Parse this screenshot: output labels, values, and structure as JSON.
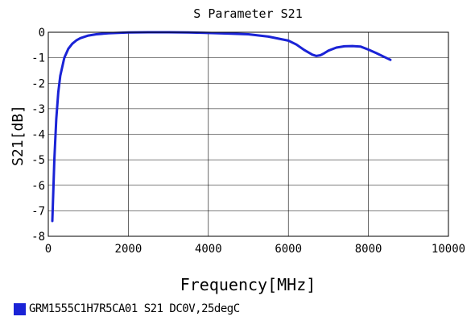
{
  "chart_data": {
    "type": "line",
    "title": "S Parameter S21",
    "xlabel": "Frequency[MHz]",
    "ylabel": "S21[dB]",
    "xlim": [
      0,
      10000
    ],
    "ylim": [
      -8,
      0
    ],
    "xticks": [
      "0",
      "2000",
      "4000",
      "6000",
      "8000",
      "10000"
    ],
    "yticks": [
      "0",
      "-1",
      "-2",
      "-3",
      "-4",
      "-5",
      "-6",
      "-7",
      "-8"
    ],
    "grid": true,
    "legend_position": "bottom-left",
    "series": [
      {
        "name": "GRM1555C1H7R5CA01 S21 DC0V,25degC",
        "color": "#1a23d6",
        "x": [
          100,
          150,
          200,
          250,
          300,
          400,
          500,
          600,
          700,
          800,
          1000,
          1200,
          1500,
          2000,
          2500,
          3000,
          3500,
          4000,
          4500,
          5000,
          5500,
          6000,
          6200,
          6400,
          6600,
          6700,
          6800,
          6900,
          7000,
          7200,
          7400,
          7600,
          7800,
          8000,
          8200,
          8400,
          8550
        ],
        "y": [
          -7.4,
          -5.0,
          -3.4,
          -2.35,
          -1.7,
          -1.0,
          -0.65,
          -0.45,
          -0.32,
          -0.23,
          -0.13,
          -0.08,
          -0.04,
          -0.01,
          0.0,
          0.0,
          -0.01,
          -0.03,
          -0.05,
          -0.08,
          -0.17,
          -0.33,
          -0.48,
          -0.7,
          -0.88,
          -0.93,
          -0.9,
          -0.82,
          -0.72,
          -0.6,
          -0.55,
          -0.54,
          -0.56,
          -0.68,
          -0.82,
          -0.97,
          -1.08
        ]
      }
    ]
  }
}
